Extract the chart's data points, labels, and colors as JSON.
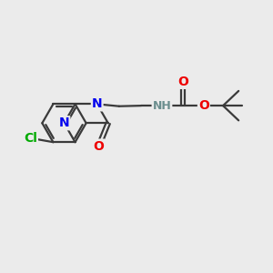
{
  "bg_color": "#ebebeb",
  "bond_color": "#3a3a3a",
  "bond_width": 1.6,
  "atom_colors": {
    "N": "#0000ee",
    "O": "#ee0000",
    "Cl": "#00aa00",
    "C": "#3a3a3a",
    "NH": "#6b8e8e"
  },
  "font_size_atom": 10,
  "figsize": [
    3.0,
    3.0
  ],
  "dpi": 100
}
